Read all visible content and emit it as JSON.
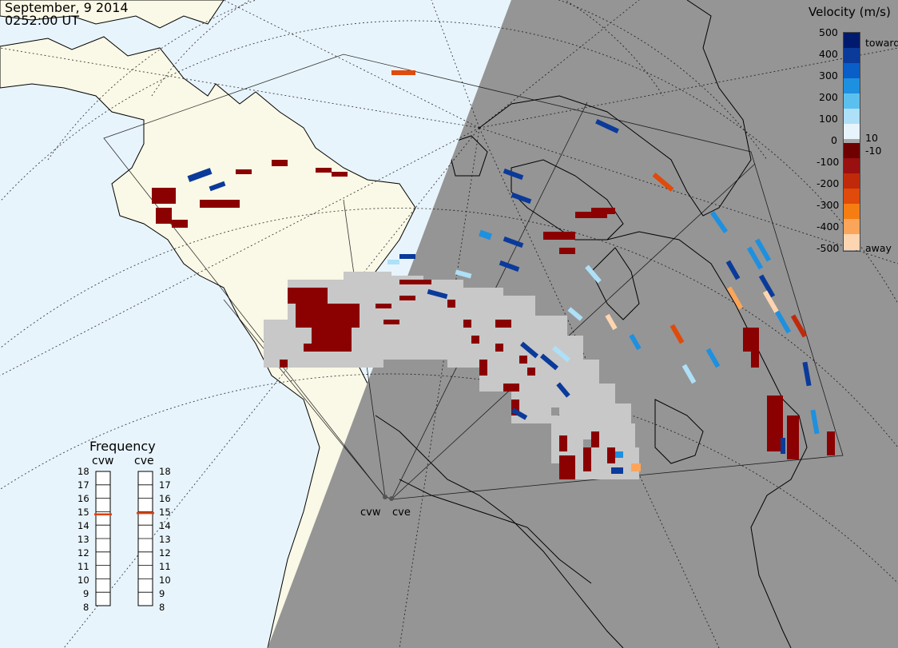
{
  "header": {
    "date": "September, 9 2014",
    "time": "0252:00 UT"
  },
  "colorbar": {
    "title": "Velocity (m/s)",
    "tick_labels": [
      "500",
      "400",
      "300",
      "200",
      "100",
      "0",
      "-100",
      "-200",
      "-300",
      "-400",
      "-500"
    ],
    "threshold_labels": [
      "10",
      "-10"
    ],
    "toward_label": "toward",
    "away_label": "away",
    "colors": {
      "toward_scale": [
        "#e8f4fb",
        "#aee0f7",
        "#5cc0ef",
        "#1e90e0",
        "#0a5ec8",
        "#0a3a9a",
        "#001a6e"
      ],
      "away_scale": [
        "#6e0000",
        "#9a0f0f",
        "#c02a0a",
        "#e04a0a",
        "#f57d12",
        "#fba55a",
        "#fdd5b0"
      ],
      "ground_scatter": "#a8a8a8"
    }
  },
  "frequency_panel": {
    "title": "Frequency",
    "radars": [
      {
        "name": "cvw",
        "frequency_mhz": 14.8
      },
      {
        "name": "cve",
        "frequency_mhz": 14.9
      }
    ],
    "ticks": [
      "18",
      "17",
      "16",
      "15",
      "14",
      "13",
      "12",
      "11",
      "10",
      "9",
      "8"
    ],
    "indicator_color": "#e0400a"
  },
  "sites": {
    "west_label": "cvw",
    "east_label": "cve"
  },
  "map": {
    "colors": {
      "ocean_day": "#e8f4fc",
      "land_day": "#faf8e6",
      "night": "#959595",
      "coastline": "#000000",
      "grid": "#000000",
      "ground_scatter": "#c8c8c8",
      "dark_red": "#8b0000"
    }
  }
}
